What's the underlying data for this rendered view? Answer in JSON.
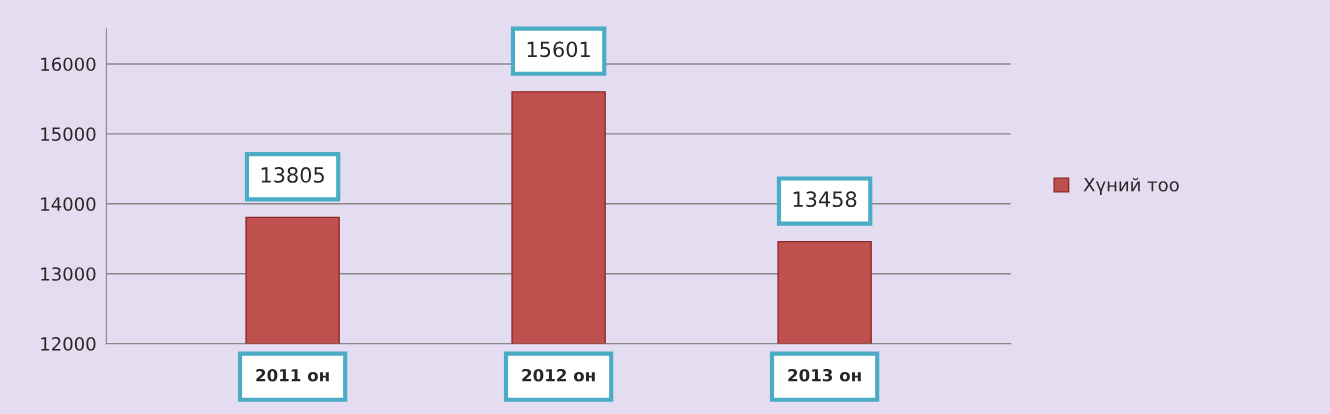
{
  "chart_data": {
    "type": "bar",
    "categories": [
      "2011 он",
      "2012 он",
      "2013 он"
    ],
    "series": [
      {
        "name": "Хүний тоо",
        "color": "#c0504d",
        "values": [
          13805,
          15601,
          13458
        ]
      }
    ],
    "ylim": [
      12000,
      16500
    ],
    "yticks": [
      12000,
      13000,
      14000,
      15000,
      16000
    ],
    "grid": "y",
    "legend": "right",
    "data_labels": true
  }
}
